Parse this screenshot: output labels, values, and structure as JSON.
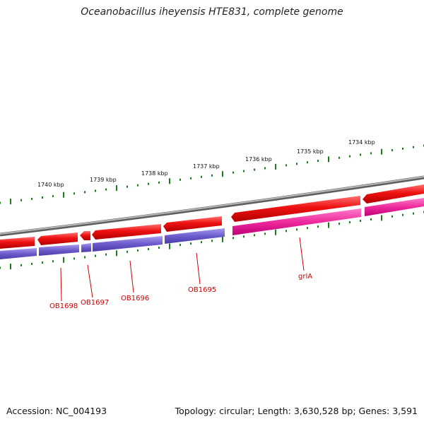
{
  "title": "Oceanobacillus iheyensis HTE831, complete genome",
  "footer": {
    "accession": "Accession: NC_004193",
    "summary": "Topology: circular; Length: 3,630,528 bp; Genes: 3,591"
  },
  "scale": {
    "labels": [
      "1740 kbp",
      "1739 kbp",
      "1738 kbp",
      "1737 kbp",
      "1736 kbp",
      "1735 kbp",
      "1734 kbp"
    ]
  },
  "genes": {
    "labels": [
      "OB1698",
      "OB1697",
      "OB1696",
      "OB1695",
      "grlA"
    ]
  },
  "colors": {
    "backbone": "#8a8a8a",
    "strand_cds": "#ee1111",
    "cds_purple": "#6c5ccc",
    "cds_pink": "#ee2a9c",
    "tick": "#1e7a1e",
    "label": "#cc0000"
  }
}
